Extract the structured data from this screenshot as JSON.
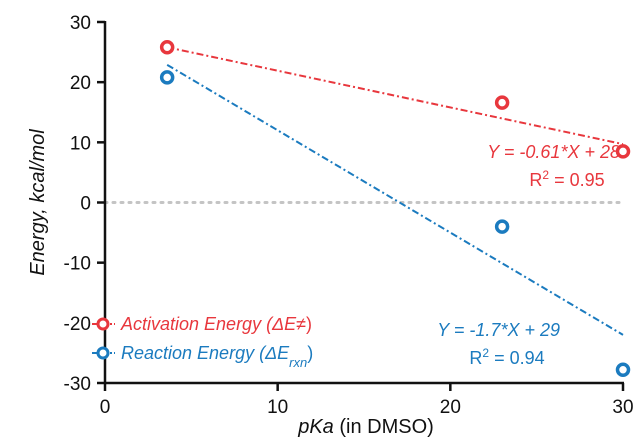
{
  "chart_data": {
    "type": "scatter",
    "xlabel": {
      "italic": "pKa",
      "rest": " (in DMSO)"
    },
    "ylabel": "Energy, kcal/mol",
    "xlim": [
      0,
      30
    ],
    "ylim": [
      -30,
      30
    ],
    "xticks": [
      "0",
      "10",
      "20",
      "30"
    ],
    "yticks": [
      "-30",
      "-20",
      "-10",
      "0",
      "10",
      "20",
      "30"
    ],
    "zero_reference_line": true,
    "grid": false,
    "legend_position": "bottom-left",
    "series": [
      {
        "key": "activation",
        "name": "Activation Energy (ΔE≠)",
        "legend": {
          "main": "Activation Energy (ΔE",
          "sub": "",
          "tail": "≠)"
        },
        "color": "#e8373d",
        "x": [
          3.6,
          23.0,
          30.0
        ],
        "y": [
          25.8,
          16.6,
          8.5
        ],
        "fit": {
          "slope": -0.61,
          "intercept": 28,
          "x_range": [
            3.6,
            30
          ],
          "equation": "Y = -0.61*X + 28",
          "r2_label": "R",
          "r2_sup": "2",
          "r2_value": " = 0.95"
        }
      },
      {
        "key": "reaction",
        "name": "Reaction Energy (ΔErxn)",
        "legend": {
          "main": "Reaction Energy (ΔE",
          "sub": "rxn",
          "tail": ")"
        },
        "color": "#1b7bbf",
        "x": [
          3.6,
          23.0,
          30.0
        ],
        "y": [
          20.8,
          -4.0,
          -27.8
        ],
        "fit": {
          "slope": -1.7,
          "intercept": 29,
          "x_range": [
            3.6,
            30
          ],
          "equation": "Y = -1.7*X + 29",
          "r2_label": "R",
          "r2_sup": "2",
          "r2_value": " = 0.94"
        }
      }
    ]
  }
}
